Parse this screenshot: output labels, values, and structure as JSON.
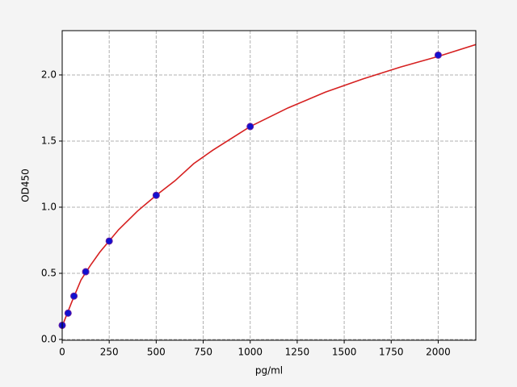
{
  "chart_data": {
    "type": "scatter",
    "xlabel": "pg/ml",
    "ylabel": "OD450",
    "xlim": [
      0,
      2200
    ],
    "ylim": [
      -0.006,
      2.335
    ],
    "xticks": [
      0,
      250,
      500,
      750,
      1000,
      1250,
      1500,
      1750,
      2000
    ],
    "yticks": [
      {
        "value": 0,
        "label": "0.0"
      },
      0.5,
      {
        "value": 1,
        "label": "1.0"
      },
      1.5,
      {
        "value": 2,
        "label": "2.0"
      }
    ],
    "grid": true,
    "series": [
      {
        "kind": "line",
        "color": "#d62020",
        "x": [
          0,
          25,
          50,
          100,
          150,
          200,
          300,
          400,
          500,
          600,
          700,
          800,
          900,
          1000,
          1200,
          1400,
          1600,
          1800,
          2000,
          2200
        ],
        "values": [
          0.1,
          0.19,
          0.28,
          0.45,
          0.56,
          0.66,
          0.83,
          0.97,
          1.09,
          1.2,
          1.33,
          1.43,
          1.52,
          1.61,
          1.75,
          1.87,
          1.97,
          2.06,
          2.14,
          2.23
        ]
      },
      {
        "kind": "scatter",
        "color": "#1010d0",
        "x": [
          0,
          31.25,
          62.5,
          125,
          250,
          500,
          1000,
          2000
        ],
        "values": [
          0.107,
          0.199,
          0.328,
          0.512,
          0.744,
          1.09,
          1.61,
          2.15
        ]
      }
    ]
  }
}
